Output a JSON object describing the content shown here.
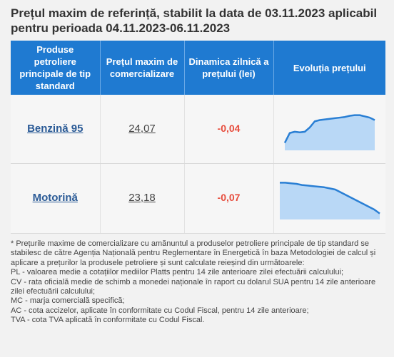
{
  "title": "Prețul maxim de referință, stabilit la data de 03.11.2023 aplicabil pentru perioada 04.11.2023-06.11.2023",
  "table": {
    "headers": [
      "Produse petroliere principale de tip standard",
      "Prețul maxim de comercializare",
      "Dinamica zilnică a prețului (lei)",
      "Evoluția prețului"
    ],
    "rows": [
      {
        "product": "Benzină 95",
        "price": "24,07",
        "dynamic": "-0,04"
      },
      {
        "product": "Motorină",
        "price": "23,18",
        "dynamic": "-0,07"
      }
    ]
  },
  "chart_data": [
    {
      "type": "area",
      "series": [
        {
          "values": [
            23.7,
            23.86,
            23.88,
            23.87,
            23.88,
            23.95,
            24.05,
            24.07,
            24.08,
            24.09,
            24.1,
            24.11,
            24.12,
            24.14,
            24.15,
            24.15,
            24.13,
            24.11,
            24.07
          ]
        }
      ],
      "ylim": [
        23.6,
        24.25
      ],
      "grid": false
    },
    {
      "type": "area",
      "series": [
        {
          "values": [
            23.72,
            23.72,
            23.71,
            23.7,
            23.68,
            23.67,
            23.66,
            23.65,
            23.64,
            23.62,
            23.6,
            23.55,
            23.5,
            23.45,
            23.4,
            23.35,
            23.3,
            23.25,
            23.18
          ]
        }
      ],
      "ylim": [
        23.1,
        23.8
      ],
      "grid": false
    }
  ],
  "colors": {
    "header_bg": "#1f7ad1",
    "link": "#2a5a96",
    "negative": "#e74c3c",
    "spark_line": "#2a7fd4",
    "spark_fill": "#b9d8f6"
  },
  "notes": [
    "* Prețurile maxime de comercializare cu amănuntul a produselor petroliere principale de tip standard se stabilesc de către Agenția Națională pentru Reglementare în Energetică în baza Metodologiei de calcul și aplicare a prețurilor la produsele petroliere și sunt calculate reieșind din următoarele:",
    "PL - valoarea medie a cotațiilor mediilor Platts pentru 14 zile anterioare zilei efectuării calculului;",
    "CV - rata oficială medie de schimb a monedei naționale în raport cu dolarul SUA pentru 14 zile anterioare zilei efectuării calculului;",
    "MC - marja comercială specifică;",
    "AC - cota accizelor, aplicate în conformitate cu Codul Fiscal, pentru 14 zile anterioare;",
    "TVA - cota TVA aplicată în conformitate cu Codul Fiscal."
  ]
}
